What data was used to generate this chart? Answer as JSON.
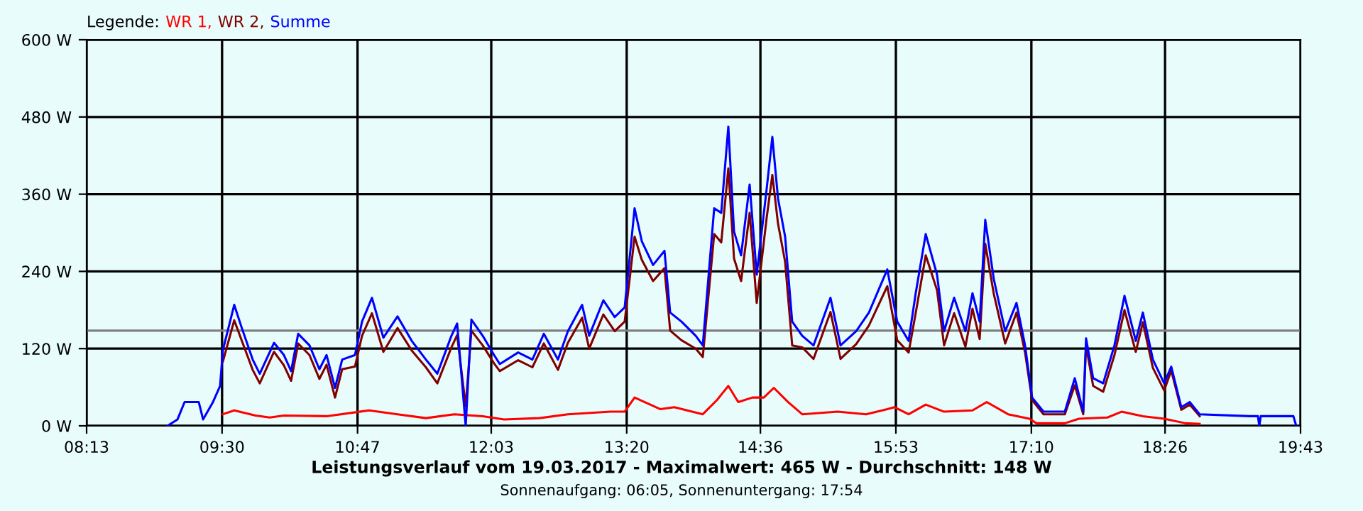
{
  "chart_data": {
    "type": "line",
    "title": "Leistungsverlauf vom 19.03.2017 - Maximalwert: 465 W - Durchschnitt: 148 W",
    "subtitle": "Sonnenaufgang: 06:05, Sonnenuntergang: 17:54",
    "legend_title": "Legende:",
    "legend": "top left",
    "annotations": [
      ",",
      ","
    ],
    "grid": true,
    "xlim": [
      8.2167,
      19.7167
    ],
    "xticks": [
      {
        "value": 8.2167,
        "label": "08:13"
      },
      {
        "value": 9.5,
        "label": "09:30"
      },
      {
        "value": 10.7833,
        "label": "10:47"
      },
      {
        "value": 12.05,
        "label": "12:03"
      },
      {
        "value": 13.3333,
        "label": "13:20"
      },
      {
        "value": 14.6,
        "label": "14:36"
      },
      {
        "value": 15.8833,
        "label": "15:53"
      },
      {
        "value": 17.1667,
        "label": "17:10"
      },
      {
        "value": 18.4333,
        "label": "18:26"
      },
      {
        "value": 19.7167,
        "label": "19:43"
      }
    ],
    "ylim": [
      0,
      600
    ],
    "yticks": [
      {
        "value": 0,
        "label": "0 W"
      },
      {
        "value": 120,
        "label": "120 W"
      },
      {
        "value": 240,
        "label": "240 W"
      },
      {
        "value": 360,
        "label": "360 W"
      },
      {
        "value": 480,
        "label": "480 W"
      },
      {
        "value": 600,
        "label": "600 W"
      }
    ],
    "ref_lines": [
      {
        "axis": "y",
        "value": 148,
        "label": null,
        "color": "#808080"
      }
    ],
    "series": [
      {
        "name": "WR 1",
        "color": "#ff0000",
        "x": [
          9.508,
          9.615,
          9.817,
          9.952,
          10.086,
          10.49,
          10.893,
          11.162,
          11.431,
          11.7,
          11.969,
          12.171,
          12.507,
          12.776,
          13.18,
          13.314,
          13.408,
          13.65,
          13.785,
          14.054,
          14.188,
          14.296,
          14.39,
          14.525,
          14.632,
          14.727,
          14.861,
          14.996,
          15.332,
          15.601,
          15.802,
          15.869,
          16.004,
          16.166,
          16.34,
          16.609,
          16.744,
          16.946,
          17.148,
          17.215,
          17.484,
          17.618,
          17.887,
          18.022,
          18.223,
          18.425,
          18.627,
          18.761
        ],
        "values": [
          18,
          24,
          16,
          13,
          16,
          15,
          24,
          18,
          12,
          18,
          15,
          10,
          12,
          18,
          22,
          22,
          44,
          26,
          29,
          18,
          40,
          62,
          37,
          44,
          44,
          59,
          37,
          18,
          22,
          18,
          26,
          29,
          18,
          33,
          22,
          24,
          37,
          18,
          11,
          4,
          4,
          11,
          13,
          22,
          15,
          11,
          4,
          3
        ]
      },
      {
        "name": "WR 2",
        "color": "#800000",
        "x": [
          9.508,
          9.615,
          9.683,
          9.79,
          9.857,
          9.992,
          10.086,
          10.154,
          10.221,
          10.328,
          10.422,
          10.49,
          10.57,
          10.638,
          10.759,
          10.826,
          10.92,
          11.028,
          11.162,
          11.297,
          11.431,
          11.539,
          11.673,
          11.727,
          11.808,
          11.862,
          11.969,
          12.077,
          12.131,
          12.305,
          12.44,
          12.548,
          12.682,
          12.776,
          12.911,
          12.978,
          13.112,
          13.22,
          13.314,
          13.408,
          13.476,
          13.583,
          13.691,
          13.745,
          13.852,
          13.987,
          14.054,
          14.162,
          14.229,
          14.296,
          14.35,
          14.417,
          14.498,
          14.565,
          14.659,
          14.713,
          14.767,
          14.834,
          14.901,
          14.996,
          15.103,
          15.264,
          15.359,
          15.507,
          15.628,
          15.802,
          15.896,
          16.004,
          16.071,
          16.166,
          16.273,
          16.34,
          16.435,
          16.542,
          16.609,
          16.677,
          16.73,
          16.811,
          16.919,
          17.026,
          17.107,
          17.174,
          17.282,
          17.484,
          17.578,
          17.658,
          17.685,
          17.752,
          17.847,
          17.954,
          18.049,
          18.156,
          18.223,
          18.318,
          18.425,
          18.492,
          18.587,
          18.667,
          18.761
        ],
        "values": [
          100,
          164,
          134,
          87,
          66,
          115,
          94,
          70,
          128,
          110,
          73,
          95,
          44,
          88,
          92,
          140,
          175,
          115,
          152,
          117,
          91,
          66,
          122,
          141,
          30,
          148,
          125,
          97,
          85,
          102,
          91,
          128,
          87,
          129,
          168,
          120,
          173,
          147,
          162,
          294,
          258,
          225,
          245,
          148,
          133,
          120,
          107,
          298,
          285,
          400,
          260,
          225,
          331,
          191,
          323,
          390,
          314,
          255,
          125,
          122,
          104,
          177,
          104,
          127,
          156,
          217,
          133,
          114,
          175,
          265,
          211,
          125,
          175,
          123,
          182,
          135,
          283,
          205,
          128,
          176,
          114,
          40,
          18,
          18,
          63,
          18,
          125,
          62,
          53,
          110,
          180,
          115,
          161,
          90,
          55,
          86,
          25,
          33,
          15
        ]
      },
      {
        "name": "Summe",
        "color": "#0000ff",
        "x": [
          8.983,
          9.078,
          9.145,
          9.279,
          9.32,
          9.414,
          9.481,
          9.508,
          9.615,
          9.683,
          9.79,
          9.857,
          9.992,
          10.086,
          10.154,
          10.221,
          10.328,
          10.422,
          10.49,
          10.57,
          10.638,
          10.759,
          10.826,
          10.92,
          11.028,
          11.162,
          11.297,
          11.431,
          11.539,
          11.673,
          11.727,
          11.808,
          11.862,
          11.969,
          12.077,
          12.131,
          12.305,
          12.44,
          12.548,
          12.682,
          12.776,
          12.911,
          12.978,
          13.112,
          13.22,
          13.314,
          13.408,
          13.476,
          13.583,
          13.691,
          13.745,
          13.852,
          13.987,
          14.054,
          14.162,
          14.229,
          14.296,
          14.35,
          14.417,
          14.498,
          14.565,
          14.659,
          14.713,
          14.767,
          14.834,
          14.901,
          14.996,
          15.103,
          15.264,
          15.359,
          15.507,
          15.628,
          15.802,
          15.896,
          16.004,
          16.071,
          16.166,
          16.273,
          16.34,
          16.435,
          16.542,
          16.609,
          16.677,
          16.73,
          16.811,
          16.919,
          17.026,
          17.107,
          17.174,
          17.282,
          17.484,
          17.578,
          17.658,
          17.685,
          17.752,
          17.847,
          17.954,
          18.049,
          18.156,
          18.223,
          18.318,
          18.425,
          18.492,
          18.587,
          18.667,
          18.761,
          19.232,
          19.313,
          19.326,
          19.34,
          19.649,
          19.676
        ],
        "values": [
          0,
          10,
          37,
          37,
          10,
          37,
          62,
          118,
          188,
          154,
          103,
          81,
          129,
          110,
          85,
          143,
          125,
          88,
          110,
          59,
          103,
          110,
          162,
          199,
          137,
          170,
          132,
          103,
          81,
          140,
          159,
          0,
          165,
          140,
          110,
          96,
          114,
          103,
          143,
          103,
          147,
          188,
          140,
          195,
          169,
          184,
          338,
          287,
          250,
          272,
          176,
          162,
          140,
          125,
          338,
          331,
          465,
          302,
          265,
          375,
          235,
          368,
          449,
          353,
          294,
          162,
          140,
          125,
          199,
          125,
          147,
          176,
          243,
          162,
          132,
          206,
          298,
          235,
          147,
          199,
          147,
          206,
          162,
          320,
          228,
          147,
          191,
          125,
          44,
          22,
          22,
          74,
          22,
          136,
          74,
          66,
          125,
          202,
          132,
          176,
          103,
          66,
          92,
          29,
          37,
          18,
          15,
          15,
          0,
          15,
          15,
          0
        ]
      }
    ]
  }
}
